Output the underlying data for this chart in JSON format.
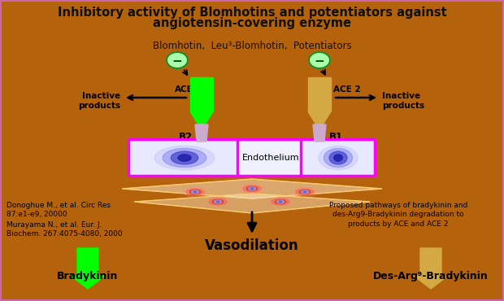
{
  "background_color": "#b5620c",
  "title_line1": "Inhibitory activity of Blomhotins and potentiators against",
  "title_line2": "angiotensin-covering enzyme",
  "title_color": "#111100",
  "title_fontsize": 10.5,
  "subtitle": "Blomhotin,  Leu³-Blomhotin,  Potentiators",
  "subtitle_color": "#111100",
  "subtitle_fontsize": 8.5,
  "ace_label": "ACE",
  "ace2_label": "ACE 2",
  "b2_label": "B2",
  "b1_label": "B1",
  "endothelium_label": "Endothelium",
  "inactive_left": "Inactive\nproducts",
  "inactive_right": "Inactive\nproducts",
  "vasodilation_label": "Vasodilation",
  "bradykinin_label": "Bradykinin",
  "des_arg_label": "Des-Arg⁹-Bradykinin",
  "ref1": "Donoghue M., et al. Circ Res\n87:e1-e9, 20000",
  "ref2": "Murayama N., et al. Eur. J.\nBiochem. 267:4075-4080, 2000",
  "proposed_text": "Proposed pathways of bradykinin and\ndes-Arg9-Bradykinin degradation to\nproducts by ACE and ACE 2",
  "green_color": "#00ff00",
  "gold_color": "#d4a843",
  "magenta_color": "#ff00ff",
  "black_color": "#000000",
  "purple_r": "#cc99cc",
  "circ_fill": "#aaffaa",
  "circ_edge": "#228822"
}
